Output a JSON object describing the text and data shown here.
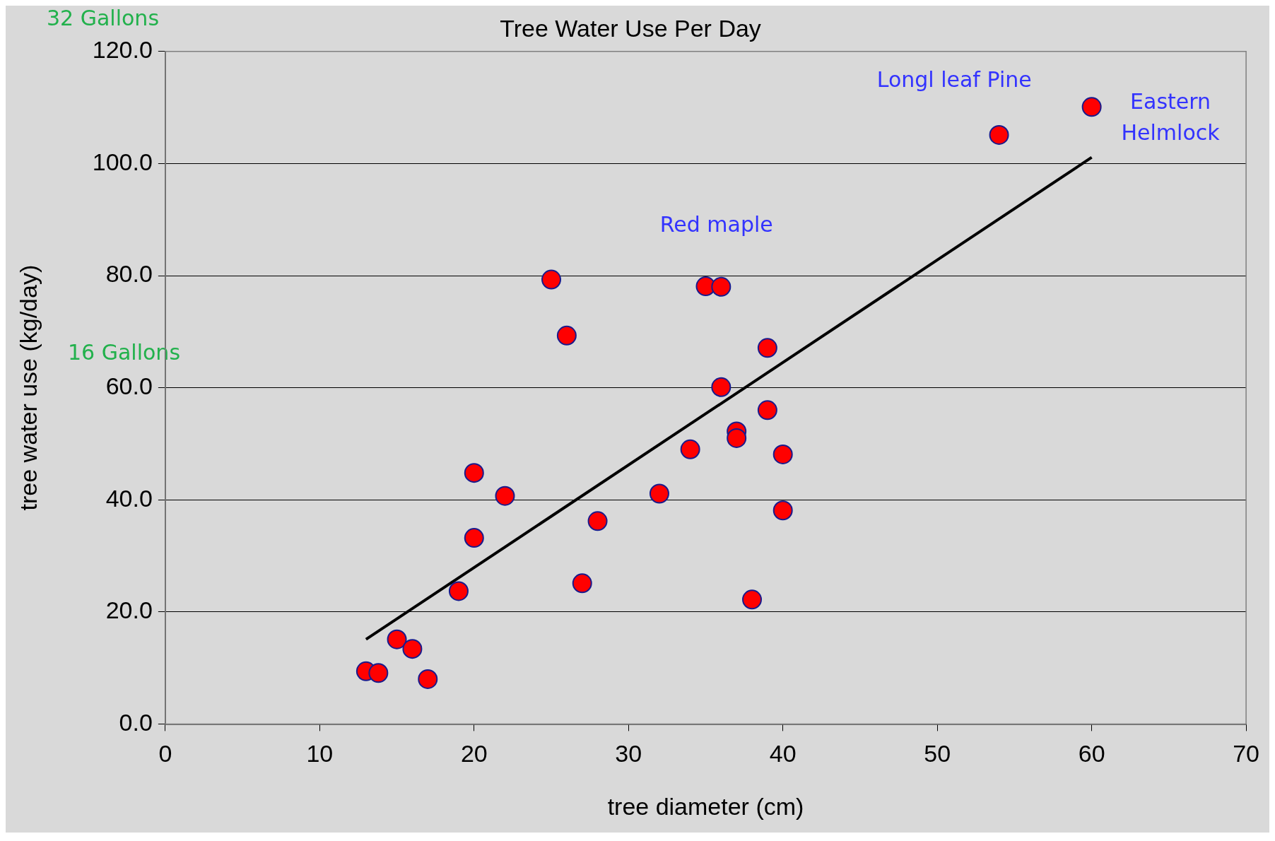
{
  "chart_data": {
    "type": "scatter",
    "title": "Tree Water Use Per Day",
    "xlabel": "tree diameter (cm)",
    "ylabel": "tree water use (kg/day)",
    "xlim": [
      0,
      70
    ],
    "xticks": [
      0,
      10,
      20,
      30,
      40,
      50,
      60,
      70
    ],
    "ylim": [
      0,
      120
    ],
    "yticks": [
      {
        "value": 0,
        "label": "0.0"
      },
      {
        "value": 20,
        "label": "20.0"
      },
      {
        "value": 40,
        "label": "40.0"
      },
      {
        "value": 60,
        "label": "60.0"
      },
      {
        "value": 80,
        "label": "80.0"
      },
      {
        "value": 100,
        "label": "100.0"
      },
      {
        "value": 120,
        "label": "120.0"
      }
    ],
    "grid": "y",
    "legend": false,
    "series": [
      {
        "type": "scatter",
        "marker": "circle",
        "color": "#ff0000",
        "x": [
          13,
          13.8,
          15,
          16,
          17,
          19,
          20,
          20,
          22,
          25,
          26,
          27,
          28,
          32,
          34,
          35,
          36,
          36,
          37,
          37,
          38,
          39,
          39,
          40,
          40,
          54,
          60
        ],
        "values": [
          9.4,
          9.1,
          15.1,
          13.4,
          8.0,
          23.7,
          44.8,
          33.2,
          40.7,
          79.3,
          69.3,
          25.1,
          36.2,
          41.1,
          49.0,
          78.1,
          78.0,
          60.1,
          52.2,
          51.0,
          22.2,
          67.1,
          56.0,
          48.1,
          38.1,
          105.1,
          110.1
        ]
      },
      {
        "type": "line",
        "marker": "none",
        "color": "#000000",
        "x": [
          13,
          60
        ],
        "values": [
          15.1,
          101.1
        ]
      }
    ],
    "annotations": [
      "32 Gallons",
      "16 Gallons",
      "Longl leaf Pine",
      "Eastern Helmlock",
      "Red maple"
    ]
  }
}
